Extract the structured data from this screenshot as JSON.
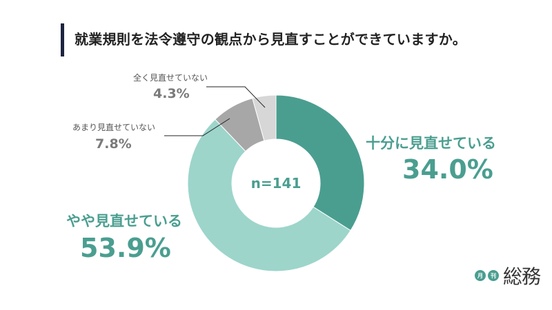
{
  "title": "就業規則を法令遵守の観点から見直すことができていますか。",
  "colors": {
    "title_bar": "#1c2440",
    "accent": "#4a9e90",
    "slice_dark_teal": "#4a9e90",
    "slice_light_teal": "#9dd5cb",
    "slice_gray": "#a7a7a7",
    "slice_light_gray": "#d7d7d7"
  },
  "chart_data": {
    "type": "pie",
    "variant": "donut",
    "sample_size_label": "n=141",
    "slices": [
      {
        "label": "十分に見直せている",
        "value": 34.0,
        "value_label": "34.0%",
        "color": "#4a9e90"
      },
      {
        "label": "やや見直せている",
        "value": 53.9,
        "value_label": "53.9%",
        "color": "#9dd5cb"
      },
      {
        "label": "あまり見直せていない",
        "value": 7.8,
        "value_label": "7.8%",
        "color": "#a7a7a7"
      },
      {
        "label": "全く見直せていない",
        "value": 4.3,
        "value_label": "4.3%",
        "color": "#d7d7d7"
      }
    ],
    "start_angle_deg": 0,
    "direction": "clockwise"
  },
  "logo": {
    "badge_1": "月",
    "badge_2": "刊",
    "text": "総務"
  }
}
